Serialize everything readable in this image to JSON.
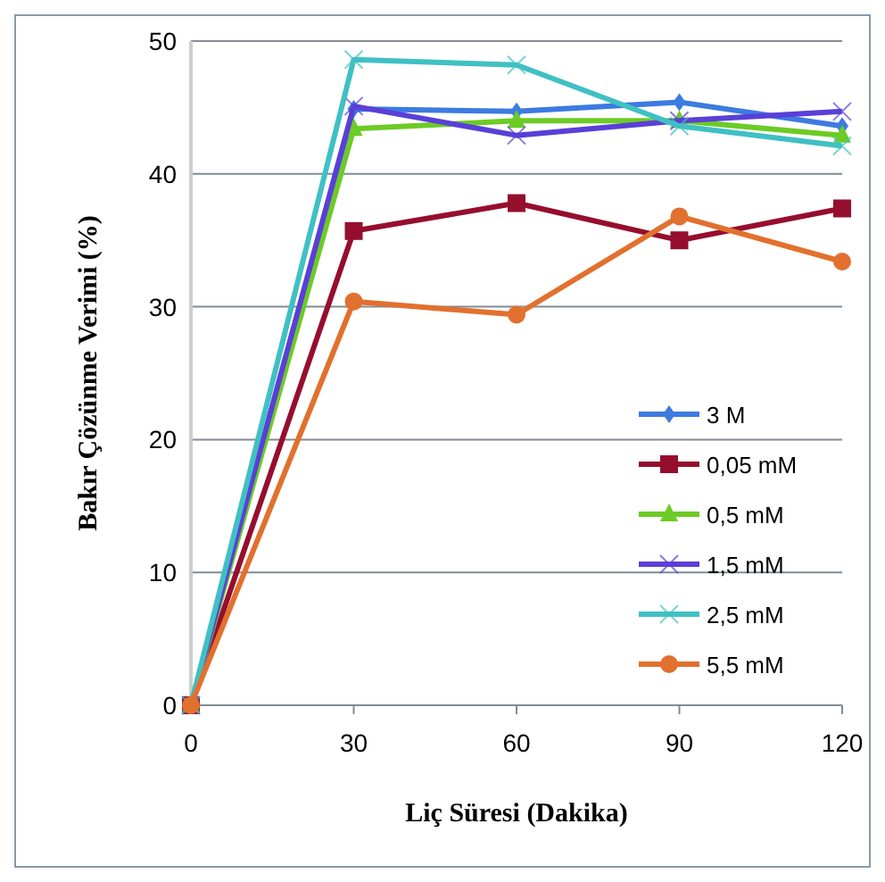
{
  "chart_data": {
    "type": "line",
    "xlabel": "Liç Süresi (Dakika)",
    "ylabel": "Bakır Çözünme Verimi (%)",
    "x": [
      0,
      30,
      60,
      90,
      120
    ],
    "xlim": [
      0,
      120
    ],
    "xticks": [
      0,
      30,
      60,
      90,
      120
    ],
    "ylim": [
      0,
      50
    ],
    "yticks": [
      0,
      10,
      20,
      30,
      40,
      50
    ],
    "grid": "y",
    "legend": "right",
    "series": [
      {
        "name": "3 M",
        "color": "#3c7be0",
        "marker": "diamond",
        "values": [
          0,
          44.9,
          44.7,
          45.4,
          43.6
        ]
      },
      {
        "name": "0,05 mM",
        "color": "#960e2e",
        "marker": "square",
        "values": [
          0,
          35.7,
          37.8,
          35.0,
          37.4
        ]
      },
      {
        "name": "0,5 mM",
        "color": "#6ccb25",
        "marker": "triangle",
        "values": [
          0,
          43.4,
          44.0,
          44.0,
          42.9
        ]
      },
      {
        "name": "1,5 mM",
        "color": "#5a3fd8",
        "marker": "cross",
        "values": [
          0,
          45.1,
          42.9,
          44.0,
          44.7
        ]
      },
      {
        "name": "2,5 mM",
        "color": "#40c0c4",
        "marker": "cross",
        "values": [
          0,
          48.6,
          48.2,
          43.6,
          42.1
        ]
      },
      {
        "name": "5,5 mM",
        "color": "#e2702e",
        "marker": "circle",
        "values": [
          0,
          30.4,
          29.4,
          36.8,
          33.4
        ]
      }
    ]
  }
}
